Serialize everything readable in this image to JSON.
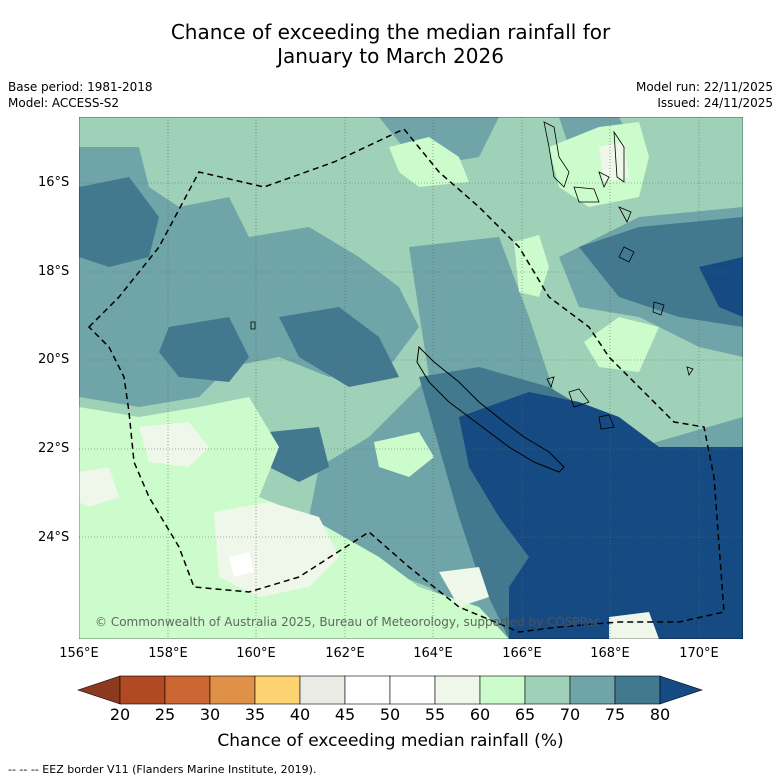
{
  "title": {
    "line1": "Chance of exceeding the median rainfall for",
    "line2": "January to March 2026"
  },
  "meta": {
    "base_period": "Base period: 1981-2018",
    "model": "Model: ACCESS-S2",
    "model_run": "Model run: 22/11/2025",
    "issued": "Issued: 24/11/2025"
  },
  "map": {
    "copyright": "© Commonwealth of Australia 2025, Bureau of Meteorology, supported by COSPPac",
    "lat_labels": [
      "16°S",
      "18°S",
      "20°S",
      "22°S",
      "24°S"
    ],
    "lon_labels": [
      "156°E",
      "158°E",
      "160°E",
      "162°E",
      "164°E",
      "166°E",
      "168°E",
      "170°E"
    ]
  },
  "colorbar": {
    "ticks": [
      "20",
      "25",
      "30",
      "35",
      "40",
      "45",
      "50",
      "55",
      "60",
      "65",
      "70",
      "75",
      "80"
    ],
    "colors": [
      "#8c3a1e",
      "#b04a22",
      "#cc6633",
      "#e09148",
      "#fdd270",
      "#ebebe6",
      "#ffffff",
      "#ffffff",
      "#eef7ea",
      "#ccfccc",
      "#9fd1b8",
      "#6fa5a8",
      "#42798f",
      "#154b82"
    ],
    "title": "Chance of exceeding median rainfall (%)"
  },
  "footnote": "-- -- -- EEZ border V11 (Flanders Marine Institute, 2019)."
}
